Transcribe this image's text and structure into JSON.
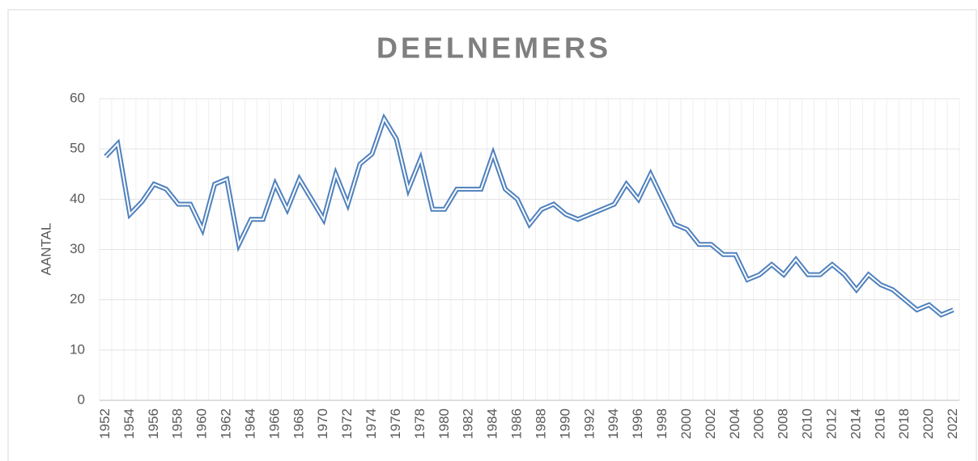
{
  "chart_data": {
    "type": "line",
    "title": "DEELNEMERS",
    "y_label": "AANTAL",
    "categories": [
      "1952",
      null,
      "1954",
      null,
      "1956",
      null,
      "1958",
      null,
      "1960",
      null,
      "1962",
      null,
      "1964",
      null,
      "1966",
      null,
      "1968",
      null,
      "1970",
      null,
      "1972",
      null,
      "1974",
      null,
      "1976",
      null,
      "1978",
      null,
      "1980",
      null,
      "1982",
      null,
      "1984",
      null,
      "1986",
      null,
      "1988",
      null,
      "1990",
      null,
      "1992",
      null,
      "1994",
      null,
      "1996",
      null,
      "1998",
      null,
      "2000",
      null,
      "2002",
      null,
      "2004",
      null,
      "2006",
      null,
      "2008",
      null,
      "2010",
      null,
      "2012",
      null,
      "2014",
      null,
      "2016",
      null,
      "2018",
      null,
      "2020",
      null,
      "2022"
    ],
    "values": [
      48.5,
      51,
      37,
      39.5,
      43,
      42,
      39,
      39,
      34,
      43,
      44,
      31,
      36,
      36,
      43,
      38,
      44,
      40,
      36,
      45,
      39,
      47,
      49,
      56,
      52,
      42,
      48,
      38,
      38,
      42,
      42,
      42,
      49,
      42,
      40,
      35,
      38,
      39,
      37,
      36,
      37,
      38,
      39,
      43,
      40,
      45,
      40,
      35,
      34,
      31,
      31,
      29,
      29,
      24,
      25,
      27,
      25,
      28,
      25,
      25,
      27,
      25,
      22,
      25,
      23,
      22,
      20,
      18,
      19,
      17,
      18
    ],
    "color": "#4f81bd",
    "ylim": [
      0,
      60
    ],
    "yticks": [
      0,
      10,
      20,
      30,
      40,
      50,
      60
    ],
    "grid": true
  }
}
